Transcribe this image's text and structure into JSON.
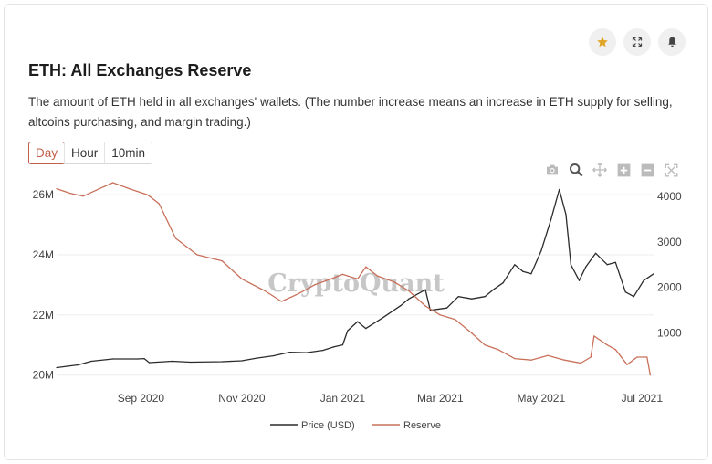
{
  "card": {
    "title": "ETH: All Exchanges Reserve",
    "description": "The amount of ETH held in all exchanges' wallets. (The number increase means an increase in ETH supply for selling, altcoins purchasing, and margin trading.)"
  },
  "top_actions": [
    {
      "name": "star-icon",
      "color": "#e0a526"
    },
    {
      "name": "expand-icon",
      "color": "#444444"
    },
    {
      "name": "bell-icon",
      "color": "#444444"
    }
  ],
  "tabs": [
    {
      "label": "Day",
      "active": true
    },
    {
      "label": "Hour",
      "active": false
    },
    {
      "label": "10min",
      "active": false
    }
  ],
  "toolbar": [
    "camera-icon",
    "zoom-icon",
    "pan-icon",
    "zoom-in-icon",
    "zoom-out-icon",
    "autoscale-icon"
  ],
  "watermark": "CryptoQuant",
  "colors": {
    "price": "#2b2b2b",
    "reserve": "#c9705a",
    "grid": "#ececec"
  },
  "chart_data": {
    "type": "line",
    "x_range": [
      "2020-07-12",
      "2021-07-08"
    ],
    "x_ticks": [
      "Sep 2020",
      "Nov 2020",
      "Jan 2021",
      "Mar 2021",
      "May 2021",
      "Jul 2021"
    ],
    "x_tick_dates": [
      "2020-09-01",
      "2020-11-01",
      "2021-01-01",
      "2021-03-01",
      "2021-05-01",
      "2021-07-01"
    ],
    "y_left": {
      "ticks": [
        "20M",
        "22M",
        "24M",
        "26M"
      ],
      "tick_values": [
        20,
        22,
        24,
        26
      ],
      "range": [
        19.9,
        26.4
      ],
      "unit_note": "M"
    },
    "y_right": {
      "ticks": [
        "1000",
        "2000",
        "3000",
        "4000"
      ],
      "tick_values": [
        1000,
        2000,
        3000,
        4000
      ],
      "range": [
        10,
        4300
      ]
    },
    "grid": true,
    "legend_position": "bottom-center",
    "series": [
      {
        "name": "Price (USD)",
        "axis": "right",
        "points": [
          [
            "2020-07-12",
            240
          ],
          [
            "2020-07-25",
            300
          ],
          [
            "2020-08-02",
            380
          ],
          [
            "2020-08-15",
            430
          ],
          [
            "2020-08-30",
            430
          ],
          [
            "2020-09-03",
            440
          ],
          [
            "2020-09-06",
            350
          ],
          [
            "2020-09-20",
            380
          ],
          [
            "2020-10-01",
            360
          ],
          [
            "2020-10-20",
            370
          ],
          [
            "2020-11-01",
            390
          ],
          [
            "2020-11-10",
            450
          ],
          [
            "2020-11-20",
            500
          ],
          [
            "2020-11-30",
            580
          ],
          [
            "2020-12-10",
            570
          ],
          [
            "2020-12-20",
            620
          ],
          [
            "2020-12-27",
            700
          ],
          [
            "2021-01-01",
            740
          ],
          [
            "2021-01-04",
            1050
          ],
          [
            "2021-01-10",
            1250
          ],
          [
            "2021-01-15",
            1100
          ],
          [
            "2021-01-25",
            1330
          ],
          [
            "2021-02-05",
            1600
          ],
          [
            "2021-02-10",
            1750
          ],
          [
            "2021-02-20",
            1950
          ],
          [
            "2021-02-23",
            1500
          ],
          [
            "2021-03-05",
            1550
          ],
          [
            "2021-03-12",
            1800
          ],
          [
            "2021-03-20",
            1750
          ],
          [
            "2021-03-28",
            1800
          ],
          [
            "2021-04-02",
            1950
          ],
          [
            "2021-04-08",
            2100
          ],
          [
            "2021-04-15",
            2500
          ],
          [
            "2021-04-20",
            2350
          ],
          [
            "2021-04-25",
            2300
          ],
          [
            "2021-05-01",
            2800
          ],
          [
            "2021-05-07",
            3500
          ],
          [
            "2021-05-12",
            4150
          ],
          [
            "2021-05-16",
            3600
          ],
          [
            "2021-05-19",
            2500
          ],
          [
            "2021-05-24",
            2150
          ],
          [
            "2021-05-28",
            2450
          ],
          [
            "2021-06-03",
            2750
          ],
          [
            "2021-06-10",
            2500
          ],
          [
            "2021-06-15",
            2550
          ],
          [
            "2021-06-21",
            1900
          ],
          [
            "2021-06-26",
            1800
          ],
          [
            "2021-07-02",
            2150
          ],
          [
            "2021-07-08",
            2300
          ]
        ]
      },
      {
        "name": "Reserve",
        "axis": "left",
        "points": [
          [
            "2020-07-12",
            26.2
          ],
          [
            "2020-07-20",
            26.05
          ],
          [
            "2020-07-28",
            25.95
          ],
          [
            "2020-08-05",
            26.15
          ],
          [
            "2020-08-15",
            26.4
          ],
          [
            "2020-08-25",
            26.2
          ],
          [
            "2020-09-05",
            26.0
          ],
          [
            "2020-09-12",
            25.7
          ],
          [
            "2020-09-22",
            24.55
          ],
          [
            "2020-10-05",
            24.0
          ],
          [
            "2020-10-20",
            23.8
          ],
          [
            "2020-11-01",
            23.2
          ],
          [
            "2020-11-15",
            22.8
          ],
          [
            "2020-11-25",
            22.45
          ],
          [
            "2020-12-05",
            22.7
          ],
          [
            "2020-12-15",
            23.0
          ],
          [
            "2020-12-25",
            23.2
          ],
          [
            "2021-01-01",
            23.35
          ],
          [
            "2021-01-10",
            23.2
          ],
          [
            "2021-01-15",
            23.6
          ],
          [
            "2021-01-22",
            23.3
          ],
          [
            "2021-02-01",
            23.1
          ],
          [
            "2021-02-10",
            22.8
          ],
          [
            "2021-02-20",
            22.3
          ],
          [
            "2021-03-01",
            22.0
          ],
          [
            "2021-03-10",
            21.85
          ],
          [
            "2021-03-20",
            21.4
          ],
          [
            "2021-03-28",
            21.0
          ],
          [
            "2021-04-05",
            20.85
          ],
          [
            "2021-04-15",
            20.55
          ],
          [
            "2021-04-25",
            20.5
          ],
          [
            "2021-05-05",
            20.65
          ],
          [
            "2021-05-15",
            20.5
          ],
          [
            "2021-05-25",
            20.4
          ],
          [
            "2021-05-31",
            20.6
          ],
          [
            "2021-06-02",
            21.3
          ],
          [
            "2021-06-10",
            21.0
          ],
          [
            "2021-06-15",
            20.85
          ],
          [
            "2021-06-22",
            20.35
          ],
          [
            "2021-06-28",
            20.6
          ],
          [
            "2021-07-04",
            20.6
          ],
          [
            "2021-07-06",
            20.0
          ]
        ]
      }
    ]
  }
}
